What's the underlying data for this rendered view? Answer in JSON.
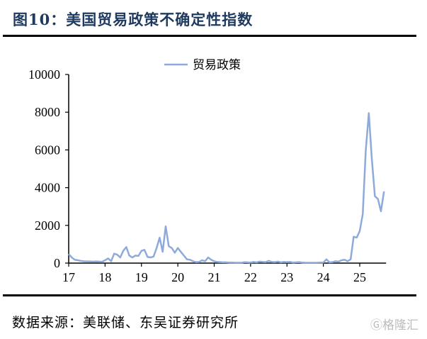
{
  "title": "图10：美国贸易政策不确定性指数",
  "source": "数据来源：美联储、东吴证券研究所",
  "watermark": "格隆汇",
  "chart_data": {
    "type": "line",
    "title": "",
    "xlabel": "",
    "ylabel": "",
    "ylim": [
      0,
      10000
    ],
    "yticks": [
      0,
      2000,
      4000,
      6000,
      8000,
      10000
    ],
    "xticks": [
      "17",
      "18",
      "19",
      "20",
      "21",
      "22",
      "23",
      "24",
      "25"
    ],
    "xrange": [
      "2017-01",
      "2025-09"
    ],
    "grid": false,
    "legend_position": "top-center",
    "colors": {
      "series": "#8eaadb"
    },
    "series": [
      {
        "name": "贸易政策",
        "start": "2017-01",
        "frequency": "monthly",
        "values": [
          480,
          300,
          180,
          150,
          120,
          100,
          90,
          90,
          80,
          90,
          80,
          70,
          150,
          250,
          100,
          500,
          450,
          300,
          650,
          850,
          400,
          300,
          400,
          380,
          650,
          700,
          330,
          300,
          350,
          800,
          1350,
          600,
          1950,
          900,
          800,
          550,
          800,
          600,
          400,
          200,
          180,
          100,
          50,
          60,
          150,
          100,
          300,
          180,
          100,
          60,
          50,
          40,
          40,
          30,
          30,
          20,
          20,
          20,
          50,
          40,
          30,
          60,
          40,
          80,
          60,
          50,
          120,
          60,
          50,
          80,
          40,
          60,
          50,
          60,
          30,
          40,
          50,
          30,
          20,
          20,
          20,
          20,
          20,
          30,
          30,
          200,
          40,
          50,
          100,
          80,
          150,
          180,
          100,
          200,
          1400,
          1350,
          1700,
          2600,
          6000,
          7950,
          5500,
          3550,
          3400,
          2750,
          3800
        ]
      }
    ]
  }
}
